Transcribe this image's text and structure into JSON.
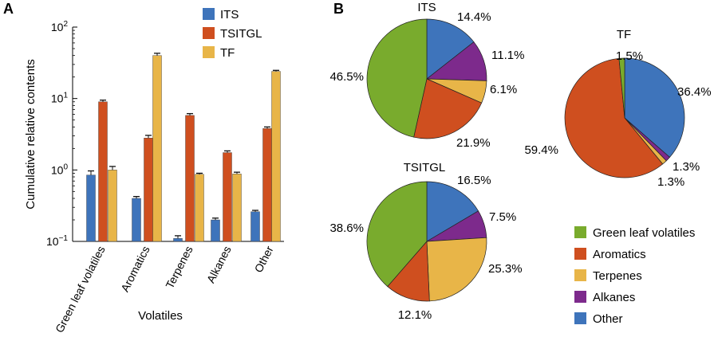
{
  "panels": {
    "a_label": "A",
    "b_label": "B"
  },
  "colors": {
    "ITS": "#3e74bb",
    "TSITGL": "#cf4f1f",
    "TF": "#e8b548",
    "Green leaf volatiles": "#79ab2d",
    "Aromatics": "#cf4f1f",
    "Terpenes": "#e8b548",
    "Alkanes": "#7d2a8c",
    "Other": "#3e74bb"
  },
  "chart_data": [
    {
      "id": "A",
      "type": "bar",
      "title": "",
      "xlabel": "Volatiles",
      "ylabel": "Cumulative relative contents",
      "yscale": "log",
      "ylim": [
        0.1,
        100
      ],
      "yticks": [
        {
          "value": 0.1,
          "base": "10",
          "exp": "−1"
        },
        {
          "value": 1,
          "base": "10",
          "exp": "0"
        },
        {
          "value": 10,
          "base": "10",
          "exp": "1"
        },
        {
          "value": 100,
          "base": "10",
          "exp": "2"
        }
      ],
      "categories": [
        "Green leaf volatiles",
        "Aromatics",
        "Terpenes",
        "Alkanes",
        "Other"
      ],
      "series": [
        {
          "name": "ITS",
          "values": [
            0.85,
            0.4,
            0.11,
            0.2,
            0.26
          ],
          "errors": [
            0.12,
            0.025,
            0.01,
            0.012,
            0.012
          ]
        },
        {
          "name": "TSITGL",
          "values": [
            9.0,
            2.8,
            5.8,
            1.75,
            3.8
          ],
          "errors": [
            0.5,
            0.25,
            0.35,
            0.1,
            0.2
          ]
        },
        {
          "name": "TF",
          "values": [
            1.0,
            40,
            0.87,
            0.88,
            24
          ],
          "errors": [
            0.12,
            3.0,
            0.03,
            0.05,
            0.8
          ]
        }
      ],
      "legend": "top-right"
    },
    {
      "id": "B-ITS",
      "type": "pie",
      "title": "ITS",
      "labels": [
        "Other",
        "Alkanes",
        "Terpenes",
        "Aromatics",
        "Green leaf volatiles"
      ],
      "values": [
        14.4,
        11.1,
        6.1,
        21.9,
        46.5
      ],
      "value_labels": [
        "14.4%",
        "11.1%",
        "6.1%",
        "21.9%",
        "46.5%"
      ]
    },
    {
      "id": "B-TSITGL",
      "type": "pie",
      "title": "TSITGL",
      "labels": [
        "Other",
        "Alkanes",
        "Terpenes",
        "Aromatics",
        "Green leaf volatiles"
      ],
      "values": [
        16.5,
        7.5,
        25.3,
        12.1,
        38.6
      ],
      "value_labels": [
        "16.5%",
        "7.5%",
        "25.3%",
        "12.1%",
        "38.6%"
      ]
    },
    {
      "id": "B-TF",
      "type": "pie",
      "title": "TF",
      "labels": [
        "Other",
        "Alkanes",
        "Terpenes",
        "Aromatics",
        "Green leaf volatiles"
      ],
      "values": [
        36.4,
        1.3,
        1.3,
        59.4,
        1.5
      ],
      "value_labels": [
        "36.4%",
        "1.3%",
        "1.3%",
        "59.4%",
        "1.5%"
      ]
    }
  ],
  "pie_legend": [
    "Green leaf volatiles",
    "Aromatics",
    "Terpenes",
    "Alkanes",
    "Other"
  ]
}
